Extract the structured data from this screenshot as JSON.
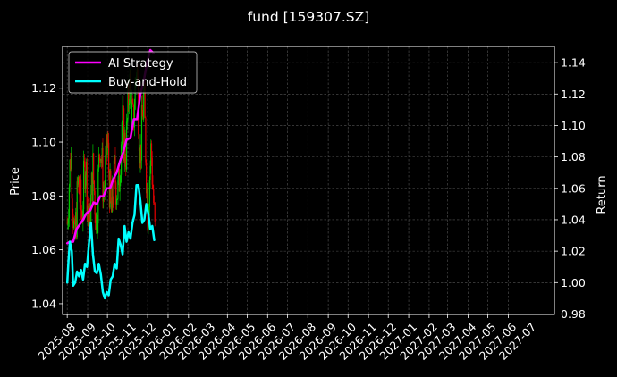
{
  "chart_data": {
    "type": "line",
    "title": "fund [159307.SZ]",
    "xlabel": "",
    "ylabel_left": "Price",
    "ylabel_right": "Return",
    "x_ticks": [
      "2025-08",
      "2025-09",
      "2025-10",
      "2025-11",
      "2025-12",
      "2026-01",
      "2026-02",
      "2026-03",
      "2026-04",
      "2026-05",
      "2026-06",
      "2026-07",
      "2026-08",
      "2026-09",
      "2026-10",
      "2026-11",
      "2026-12",
      "2027-01",
      "2027-02",
      "2027-03",
      "2027-04",
      "2027-05",
      "2027-06",
      "2027-07"
    ],
    "xlim": [
      "2025-07-25",
      "2027-08-10"
    ],
    "ylim_left": [
      1.036,
      1.1355
    ],
    "yticks_left": [
      "1.04",
      "1.06",
      "1.08",
      "1.10",
      "1.12"
    ],
    "ylim_right": [
      0.9797,
      1.1503
    ],
    "yticks_right": [
      "0.98",
      "1.00",
      "1.02",
      "1.04",
      "1.06",
      "1.08",
      "1.10",
      "1.12",
      "1.14"
    ],
    "grid": true,
    "legend_position": "top-left",
    "colors": {
      "background": "#000000",
      "up": "#00c800",
      "down": "#e00000",
      "ai": "#ff00ff",
      "bh": "#00ffff",
      "grid": "#555555"
    },
    "series": [
      {
        "name": "AI Strategy",
        "axis": "right",
        "color": "#ff00ff",
        "x": [
          "2025-08-01",
          "2025-08-05",
          "2025-08-10",
          "2025-08-15",
          "2025-08-20",
          "2025-08-25",
          "2025-08-30",
          "2025-09-05",
          "2025-09-10",
          "2025-09-15",
          "2025-09-20",
          "2025-09-25",
          "2025-09-30",
          "2025-10-05",
          "2025-10-10",
          "2025-10-15",
          "2025-10-20",
          "2025-10-25",
          "2025-10-30",
          "2025-11-05",
          "2025-11-10",
          "2025-11-15",
          "2025-11-20",
          "2025-11-25",
          "2025-11-30",
          "2025-12-05",
          "2025-12-10"
        ],
        "y": [
          1.025,
          1.026,
          1.026,
          1.034,
          1.037,
          1.04,
          1.044,
          1.046,
          1.051,
          1.05,
          1.055,
          1.055,
          1.06,
          1.06,
          1.066,
          1.07,
          1.077,
          1.083,
          1.091,
          1.092,
          1.104,
          1.104,
          1.12,
          1.128,
          1.14,
          1.148,
          1.146
        ]
      },
      {
        "name": "Buy-and-Hold",
        "axis": "right",
        "color": "#00ffff",
        "x": [
          "2025-08-01",
          "2025-08-03",
          "2025-08-05",
          "2025-08-08",
          "2025-08-10",
          "2025-08-13",
          "2025-08-16",
          "2025-08-19",
          "2025-08-22",
          "2025-08-25",
          "2025-08-28",
          "2025-08-31",
          "2025-09-03",
          "2025-09-06",
          "2025-09-09",
          "2025-09-12",
          "2025-09-15",
          "2025-09-18",
          "2025-09-21",
          "2025-09-24",
          "2025-09-27",
          "2025-09-30",
          "2025-10-03",
          "2025-10-06",
          "2025-10-09",
          "2025-10-12",
          "2025-10-15",
          "2025-10-18",
          "2025-10-21",
          "2025-10-24",
          "2025-10-27",
          "2025-10-30",
          "2025-11-02",
          "2025-11-05",
          "2025-11-08",
          "2025-11-11",
          "2025-11-14",
          "2025-11-17",
          "2025-11-20",
          "2025-11-23",
          "2025-11-26",
          "2025-11-29",
          "2025-12-02",
          "2025-12-05",
          "2025-12-08",
          "2025-12-11"
        ],
        "y": [
          1.0,
          1.014,
          1.026,
          1.02,
          0.998,
          1.0,
          1.007,
          1.004,
          1.008,
          1.002,
          1.012,
          1.01,
          1.025,
          1.038,
          1.018,
          1.007,
          1.006,
          1.012,
          1.005,
          0.994,
          0.99,
          0.994,
          0.992,
          1.002,
          1.004,
          1.012,
          1.009,
          1.028,
          1.024,
          1.018,
          1.036,
          1.026,
          1.032,
          1.028,
          1.038,
          1.043,
          1.062,
          1.062,
          1.052,
          1.038,
          1.04,
          1.05,
          1.044,
          1.034,
          1.036,
          1.027
        ]
      }
    ],
    "candles": {
      "axis": "left",
      "start": "2025-08-01",
      "end": "2025-12-12",
      "close_path": [
        1.07,
        1.098,
        1.06,
        1.085,
        1.072,
        1.095,
        1.065,
        1.09,
        1.07,
        1.102,
        1.08,
        1.1,
        1.072,
        1.088,
        1.08,
        1.108,
        1.095,
        1.123,
        1.105,
        1.13,
        1.095,
        1.118,
        1.075,
        1.098,
        1.066
      ]
    },
    "legend": [
      {
        "label": "AI Strategy",
        "color": "#ff00ff"
      },
      {
        "label": "Buy-and-Hold",
        "color": "#00ffff"
      }
    ]
  }
}
